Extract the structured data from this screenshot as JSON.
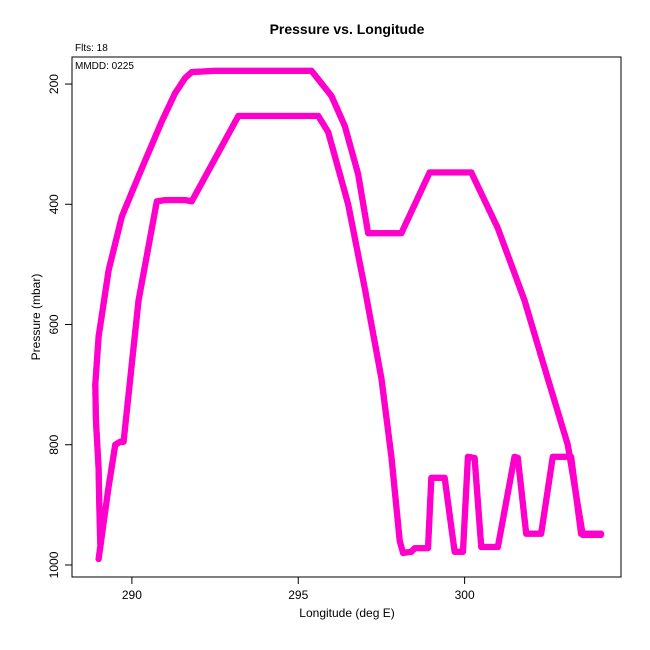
{
  "chart_data": {
    "type": "scatter",
    "title": "Pressure vs. Longitude",
    "xlabel": "Longitude (deg E)",
    "ylabel": "Pressure (mbar)",
    "annotations": {
      "flts": "Flts: 18",
      "mmdd": "MMDD: 0225"
    },
    "xlim": [
      288.2,
      304.7
    ],
    "ylim": [
      1020,
      155
    ],
    "y_reversed": true,
    "x_ticks": [
      290,
      295,
      300
    ],
    "x_tick_labels": [
      "290",
      "295",
      "300"
    ],
    "y_ticks": [
      200,
      400,
      600,
      800,
      1000
    ],
    "y_tick_labels": [
      "200",
      "400",
      "600",
      "800",
      "1000"
    ],
    "grid": false,
    "legend": "none",
    "marker_color": "#ff00cc",
    "series": [
      {
        "points": [
          [
            289.0,
            990
          ],
          [
            289.3,
            870
          ],
          [
            289.5,
            800
          ],
          [
            289.65,
            795
          ],
          [
            289.75,
            795
          ],
          [
            290.2,
            560
          ],
          [
            290.75,
            395
          ],
          [
            291.0,
            393
          ],
          [
            291.6,
            393
          ],
          [
            291.8,
            395
          ],
          [
            293.2,
            253
          ],
          [
            295.0,
            253
          ],
          [
            295.6,
            253
          ],
          [
            295.9,
            280
          ],
          [
            296.5,
            400
          ],
          [
            297.0,
            540
          ],
          [
            297.5,
            690
          ],
          [
            297.8,
            820
          ],
          [
            298.05,
            960
          ],
          [
            298.15,
            980
          ],
          [
            298.4,
            978
          ],
          [
            298.5,
            972
          ],
          [
            298.9,
            972
          ],
          [
            299.0,
            855
          ],
          [
            299.4,
            855
          ],
          [
            299.7,
            978
          ],
          [
            299.95,
            978
          ],
          [
            300.1,
            820
          ],
          [
            300.3,
            822
          ],
          [
            300.5,
            970
          ],
          [
            301.0,
            970
          ],
          [
            301.5,
            820
          ],
          [
            301.6,
            822
          ],
          [
            301.85,
            948
          ],
          [
            302.3,
            948
          ],
          [
            302.65,
            820
          ],
          [
            303.2,
            820
          ],
          [
            303.5,
            948
          ],
          [
            304.1,
            948
          ]
        ]
      },
      {
        "points": [
          [
            289.05,
            965
          ],
          [
            289.02,
            900
          ],
          [
            289.0,
            840
          ],
          [
            288.92,
            760
          ],
          [
            288.9,
            700
          ],
          [
            289.0,
            620
          ],
          [
            289.3,
            510
          ],
          [
            289.7,
            420
          ],
          [
            290.3,
            340
          ],
          [
            290.9,
            262
          ],
          [
            291.3,
            215
          ],
          [
            291.6,
            190
          ],
          [
            291.8,
            180
          ],
          [
            292.5,
            178
          ],
          [
            294.0,
            178
          ],
          [
            295.4,
            178
          ],
          [
            296.0,
            220
          ],
          [
            296.4,
            270
          ],
          [
            296.8,
            350
          ],
          [
            297.1,
            448
          ],
          [
            298.1,
            448
          ],
          [
            298.95,
            347
          ],
          [
            300.2,
            347
          ],
          [
            301.0,
            440
          ],
          [
            301.8,
            560
          ],
          [
            302.5,
            690
          ],
          [
            303.1,
            800
          ],
          [
            303.55,
            950
          ],
          [
            304.1,
            950
          ]
        ]
      }
    ]
  }
}
